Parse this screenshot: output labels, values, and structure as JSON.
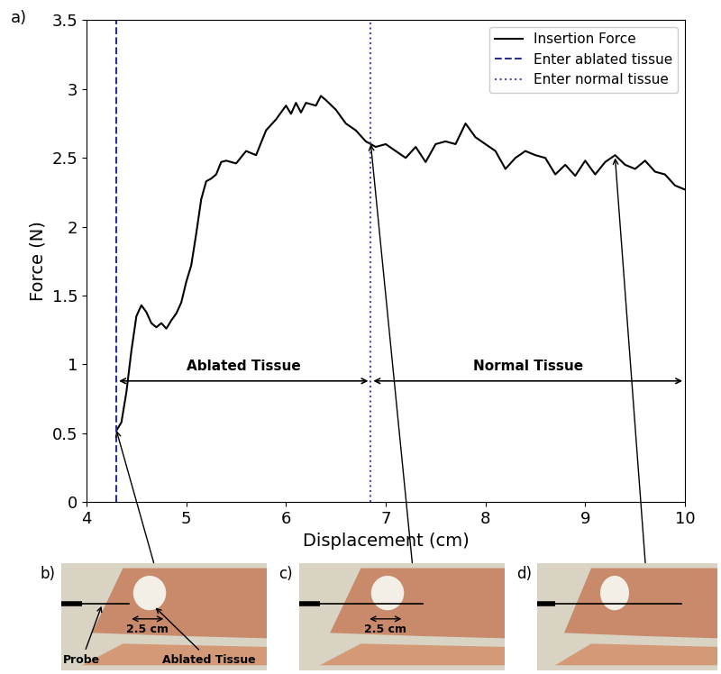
{
  "chart_data": {
    "type": "line",
    "panel_label": "a)",
    "x_label": "Displacement (cm)",
    "y_label": "Force (N)",
    "xlim": [
      4,
      10
    ],
    "xticks": [
      4,
      5,
      6,
      7,
      8,
      9,
      10
    ],
    "ylim": [
      0,
      3.5
    ],
    "yticks": [
      0,
      0.5,
      1,
      1.5,
      2,
      2.5,
      3,
      3.5
    ],
    "grid": false,
    "legend": "upper right",
    "series": [
      {
        "name": "Insertion Force",
        "color": "#000000",
        "line_style": "solid",
        "x": [
          4.3,
          4.35,
          4.4,
          4.45,
          4.5,
          4.55,
          4.6,
          4.65,
          4.7,
          4.75,
          4.8,
          4.85,
          4.9,
          4.95,
          5.0,
          5.05,
          5.1,
          5.15,
          5.2,
          5.25,
          5.3,
          5.35,
          5.4,
          5.5,
          5.6,
          5.7,
          5.8,
          5.9,
          6.0,
          6.05,
          6.1,
          6.15,
          6.2,
          6.3,
          6.35,
          6.4,
          6.5,
          6.6,
          6.7,
          6.8,
          6.9,
          7.0,
          7.1,
          7.2,
          7.3,
          7.4,
          7.5,
          7.6,
          7.7,
          7.8,
          7.9,
          8.0,
          8.1,
          8.2,
          8.3,
          8.4,
          8.5,
          8.6,
          8.7,
          8.8,
          8.9,
          9.0,
          9.1,
          9.2,
          9.3,
          9.4,
          9.5,
          9.6,
          9.7,
          9.8,
          9.9,
          10.0
        ],
        "values": [
          0.52,
          0.58,
          0.8,
          1.1,
          1.35,
          1.43,
          1.38,
          1.3,
          1.27,
          1.3,
          1.26,
          1.32,
          1.37,
          1.45,
          1.6,
          1.72,
          1.95,
          2.2,
          2.33,
          2.35,
          2.38,
          2.47,
          2.48,
          2.46,
          2.55,
          2.52,
          2.7,
          2.78,
          2.88,
          2.82,
          2.9,
          2.83,
          2.9,
          2.88,
          2.95,
          2.92,
          2.85,
          2.75,
          2.7,
          2.62,
          2.58,
          2.6,
          2.55,
          2.5,
          2.58,
          2.47,
          2.6,
          2.62,
          2.6,
          2.75,
          2.65,
          2.6,
          2.55,
          2.42,
          2.5,
          2.55,
          2.52,
          2.5,
          2.38,
          2.45,
          2.37,
          2.48,
          2.38,
          2.47,
          2.52,
          2.45,
          2.42,
          2.48,
          2.4,
          2.38,
          2.3,
          2.27
        ]
      },
      {
        "name": "Enter ablated tissue",
        "type": "vline",
        "color": "#2b2f8f",
        "line_style": "dashed",
        "x": 4.3
      },
      {
        "name": "Enter normal tissue",
        "type": "vline",
        "color": "#4a4aa8",
        "line_style": "dotted",
        "x": 6.85
      }
    ],
    "regions": [
      {
        "label": "Ablated Tissue",
        "x": [
          4.3,
          6.85
        ],
        "y": 0.88
      },
      {
        "label": "Normal Tissue",
        "x": [
          6.85,
          10
        ],
        "y": 0.88
      }
    ],
    "panels": [
      {
        "label": "b)",
        "probe_label": "Probe",
        "ablation_label": "Ablated Tissue",
        "width_label": "2.5 cm",
        "points_to": [
          4.3,
          0.52
        ]
      },
      {
        "label": "c)",
        "width_label": "2.5 cm",
        "points_to": [
          6.85,
          2.6
        ]
      },
      {
        "label": "d)",
        "points_to": [
          9.3,
          2.5
        ]
      }
    ]
  }
}
